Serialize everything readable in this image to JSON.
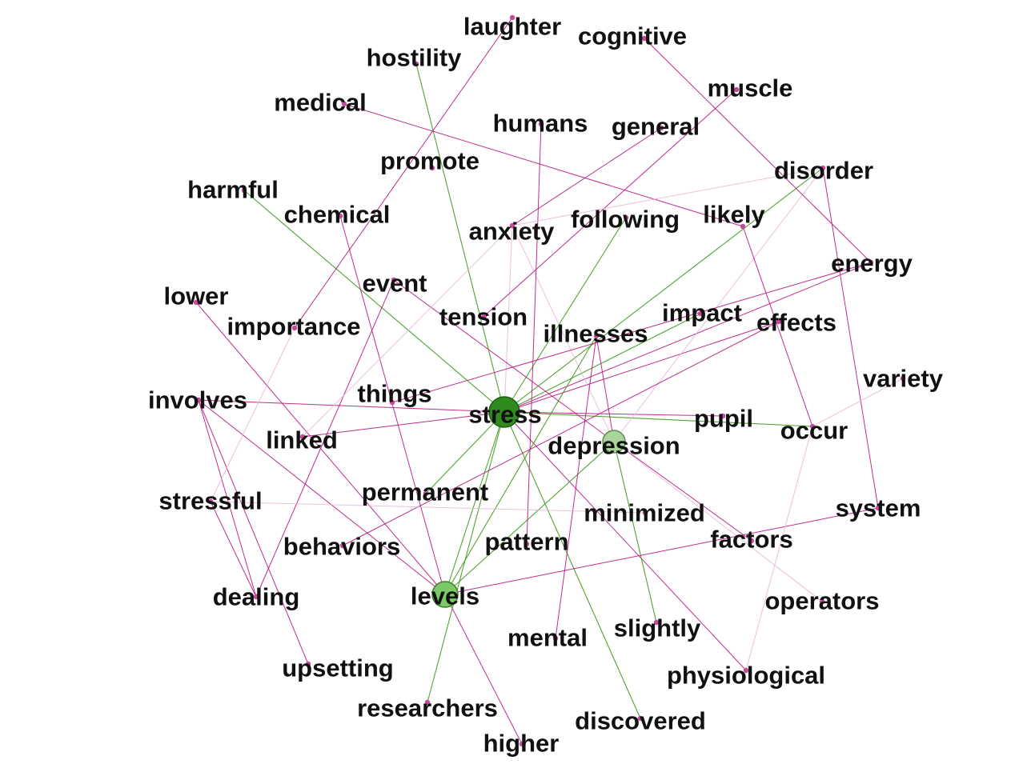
{
  "colors": {
    "background": "#ffffff",
    "label": "#111111",
    "edge_green": "#3f9a1e",
    "edge_magenta": "#b7177f",
    "edge_pink": "#e5b5d6",
    "node_green": "#2f8a1f",
    "node_light_green": "#7cc96a",
    "node_pale_green": "#a9d49a",
    "node_magenta": "#c64a9b"
  },
  "nodes": [
    {
      "id": "laughter",
      "label": "laughter"
    },
    {
      "id": "cognitive",
      "label": "cognitive"
    },
    {
      "id": "hostility",
      "label": "hostility"
    },
    {
      "id": "muscle",
      "label": "muscle"
    },
    {
      "id": "medical",
      "label": "medical"
    },
    {
      "id": "humans",
      "label": "humans"
    },
    {
      "id": "general",
      "label": "general"
    },
    {
      "id": "promote",
      "label": "promote"
    },
    {
      "id": "disorder",
      "label": "disorder"
    },
    {
      "id": "harmful",
      "label": "harmful"
    },
    {
      "id": "chemical",
      "label": "chemical"
    },
    {
      "id": "anxiety",
      "label": "anxiety"
    },
    {
      "id": "following",
      "label": "following"
    },
    {
      "id": "likely",
      "label": "likely"
    },
    {
      "id": "energy",
      "label": "energy"
    },
    {
      "id": "event",
      "label": "event"
    },
    {
      "id": "lower",
      "label": "lower"
    },
    {
      "id": "tension",
      "label": "tension"
    },
    {
      "id": "impact",
      "label": "impact"
    },
    {
      "id": "effects",
      "label": "effects"
    },
    {
      "id": "importance",
      "label": "importance"
    },
    {
      "id": "illnesses",
      "label": "illnesses"
    },
    {
      "id": "variety",
      "label": "variety"
    },
    {
      "id": "involves",
      "label": "involves"
    },
    {
      "id": "things",
      "label": "things"
    },
    {
      "id": "stress",
      "label": "stress"
    },
    {
      "id": "pupil",
      "label": "pupil"
    },
    {
      "id": "occur",
      "label": "occur"
    },
    {
      "id": "linked",
      "label": "linked"
    },
    {
      "id": "depression",
      "label": "depression"
    },
    {
      "id": "stressful",
      "label": "stressful"
    },
    {
      "id": "permanent",
      "label": "permanent"
    },
    {
      "id": "system",
      "label": "system"
    },
    {
      "id": "minimized",
      "label": "minimized"
    },
    {
      "id": "behaviors",
      "label": "behaviors"
    },
    {
      "id": "pattern",
      "label": "pattern"
    },
    {
      "id": "factors",
      "label": "factors"
    },
    {
      "id": "dealing",
      "label": "dealing"
    },
    {
      "id": "levels",
      "label": "levels"
    },
    {
      "id": "operators",
      "label": "operators"
    },
    {
      "id": "slightly",
      "label": "slightly"
    },
    {
      "id": "mental",
      "label": "mental"
    },
    {
      "id": "upsetting",
      "label": "upsetting"
    },
    {
      "id": "physiological",
      "label": "physiological"
    },
    {
      "id": "researchers",
      "label": "researchers"
    },
    {
      "id": "discovered",
      "label": "discovered"
    },
    {
      "id": "higher",
      "label": "higher"
    }
  ],
  "edges": [
    {
      "source": "stress",
      "target": "hostility",
      "color": "green"
    },
    {
      "source": "stress",
      "target": "harmful",
      "color": "green"
    },
    {
      "source": "stress",
      "target": "following",
      "color": "green"
    },
    {
      "source": "stress",
      "target": "disorder",
      "color": "green"
    },
    {
      "source": "stress",
      "target": "impact",
      "color": "green"
    },
    {
      "source": "stress",
      "target": "discovered",
      "color": "green"
    },
    {
      "source": "stress",
      "target": "researchers",
      "color": "green"
    },
    {
      "source": "stress",
      "target": "levels",
      "color": "green"
    },
    {
      "source": "stress",
      "target": "permanent",
      "color": "green"
    },
    {
      "source": "stress",
      "target": "occur",
      "color": "green"
    },
    {
      "source": "stress",
      "target": "involves",
      "color": "magenta"
    },
    {
      "source": "stress",
      "target": "linked",
      "color": "magenta"
    },
    {
      "source": "stress",
      "target": "pupil",
      "color": "magenta"
    },
    {
      "source": "stress",
      "target": "physiological",
      "color": "magenta"
    },
    {
      "source": "stress",
      "target": "effects",
      "color": "magenta"
    },
    {
      "source": "stress",
      "target": "energy",
      "color": "magenta"
    },
    {
      "source": "stress",
      "target": "anxiety",
      "color": "pink"
    },
    {
      "source": "depression",
      "target": "levels",
      "color": "green"
    },
    {
      "source": "depression",
      "target": "slightly",
      "color": "green"
    },
    {
      "source": "depression",
      "target": "illnesses",
      "color": "magenta"
    },
    {
      "source": "depression",
      "target": "event",
      "color": "magenta"
    },
    {
      "source": "depression",
      "target": "factors",
      "color": "magenta"
    },
    {
      "source": "depression",
      "target": "anxiety",
      "color": "pink"
    },
    {
      "source": "depression",
      "target": "disorder",
      "color": "pink"
    },
    {
      "source": "depression",
      "target": "operators",
      "color": "pink"
    },
    {
      "source": "levels",
      "target": "chemical",
      "color": "magenta"
    },
    {
      "source": "levels",
      "target": "lower",
      "color": "magenta"
    },
    {
      "source": "levels",
      "target": "involves",
      "color": "magenta"
    },
    {
      "source": "levels",
      "target": "system",
      "color": "magenta"
    },
    {
      "source": "levels",
      "target": "higher",
      "color": "magenta"
    },
    {
      "source": "levels",
      "target": "illnesses",
      "color": "green"
    },
    {
      "source": "laughter",
      "target": "importance",
      "color": "magenta"
    },
    {
      "source": "cognitive",
      "target": "energy",
      "color": "magenta"
    },
    {
      "source": "muscle",
      "target": "tension",
      "color": "magenta"
    },
    {
      "source": "general",
      "target": "anxiety",
      "color": "magenta"
    },
    {
      "source": "medical",
      "target": "likely",
      "color": "magenta"
    },
    {
      "source": "humans",
      "target": "pattern",
      "color": "magenta"
    },
    {
      "source": "disorder",
      "target": "system",
      "color": "magenta"
    },
    {
      "source": "likely",
      "target": "occur",
      "color": "magenta"
    },
    {
      "source": "energy",
      "target": "things",
      "color": "magenta"
    },
    {
      "source": "effects",
      "target": "behaviors",
      "color": "magenta"
    },
    {
      "source": "illnesses",
      "target": "mental",
      "color": "magenta"
    },
    {
      "source": "involves",
      "target": "dealing",
      "color": "magenta"
    },
    {
      "source": "involves",
      "target": "upsetting",
      "color": "magenta"
    },
    {
      "source": "stressful",
      "target": "dealing",
      "color": "magenta"
    },
    {
      "source": "event",
      "target": "dealing",
      "color": "magenta"
    },
    {
      "source": "importance",
      "target": "stressful",
      "color": "pink"
    },
    {
      "source": "anxiety",
      "target": "linked",
      "color": "pink"
    },
    {
      "source": "disorder",
      "target": "anxiety",
      "color": "pink"
    },
    {
      "source": "variety",
      "target": "occur",
      "color": "pink"
    },
    {
      "source": "occur",
      "target": "physiological",
      "color": "pink"
    },
    {
      "source": "stressful",
      "target": "minimized",
      "color": "pink"
    }
  ]
}
